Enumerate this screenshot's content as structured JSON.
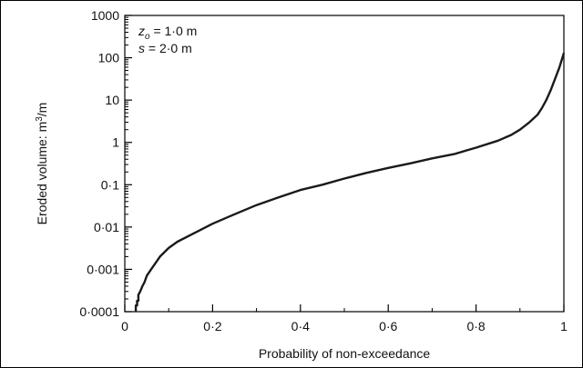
{
  "chart_data": {
    "type": "line",
    "title": "",
    "xlabel": "Probability of non-exceedance",
    "ylabel_prefix": "Eroded volume: m",
    "ylabel_sup": "3",
    "ylabel_suffix": "/m",
    "xlim": [
      0,
      1
    ],
    "ylim": [
      0.0001,
      1000
    ],
    "yscale": "log",
    "grid": false,
    "legend": "none",
    "x_ticks": [
      0,
      0.2,
      0.4,
      0.6,
      0.8,
      1
    ],
    "x_tick_labels": [
      "0",
      "0·2",
      "0·4",
      "0·6",
      "0·8",
      "1"
    ],
    "y_ticks": [
      0.0001,
      0.001,
      0.01,
      0.1,
      1,
      10,
      100,
      1000
    ],
    "y_tick_labels": [
      "0·0001",
      "0·001",
      "0·01",
      "0·1",
      "1",
      "10",
      "100",
      "1000"
    ],
    "annotations": {
      "line1": {
        "var": "z",
        "sub": "o",
        "rest": " = 1·0 m"
      },
      "line2": {
        "var": "s",
        "rest": " = 2·0 m"
      }
    },
    "line_color": "#1a1a1a",
    "series": [
      {
        "x": [
          0.025,
          0.025,
          0.028,
          0.028,
          0.031,
          0.031,
          0.035,
          0.04,
          0.045,
          0.05,
          0.06,
          0.07,
          0.08,
          0.1,
          0.12,
          0.15,
          0.2,
          0.25,
          0.3,
          0.35,
          0.4,
          0.45,
          0.5,
          0.55,
          0.6,
          0.65,
          0.7,
          0.75,
          0.8,
          0.85,
          0.88,
          0.9,
          0.92,
          0.94,
          0.95,
          0.96,
          0.97,
          0.98,
          0.99,
          1.0
        ],
        "y": [
          0.0001,
          0.00014,
          0.00014,
          0.00018,
          0.00018,
          0.00025,
          0.0003,
          0.0004,
          0.0005,
          0.0007,
          0.001,
          0.0014,
          0.002,
          0.0032,
          0.0045,
          0.0065,
          0.012,
          0.02,
          0.033,
          0.05,
          0.075,
          0.1,
          0.14,
          0.19,
          0.25,
          0.32,
          0.42,
          0.53,
          0.75,
          1.1,
          1.5,
          2.0,
          2.9,
          4.5,
          6.5,
          10,
          17,
          32,
          60,
          130
        ]
      }
    ]
  }
}
